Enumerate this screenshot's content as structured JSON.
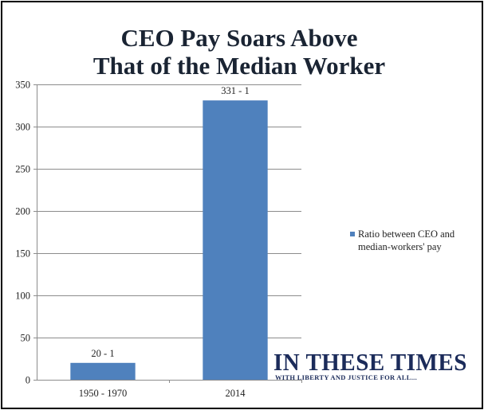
{
  "chart_data": {
    "type": "bar",
    "title_lines": [
      "CEO Pay Soars Above",
      "That of the Median Worker"
    ],
    "categories": [
      "1950 - 1970",
      "2014"
    ],
    "series": [
      {
        "name": "Ratio between CEO and median-workers' pay",
        "name_lines": [
          "Ratio between CEO and",
          "median-workers' pay"
        ],
        "values": [
          20,
          331
        ],
        "data_labels": [
          "20 - 1",
          "331 - 1"
        ],
        "color": "#4f81bd"
      }
    ],
    "ylim": [
      0,
      350
    ],
    "yticks": [
      0,
      50,
      100,
      150,
      200,
      250,
      300,
      350
    ],
    "grid": true,
    "legend_position": "right",
    "xlabel": "",
    "ylabel": ""
  },
  "watermark": {
    "main": "IN THESE TIMES",
    "sub": "WITH LIBERTY AND JUSTICE FOR ALL..."
  },
  "colors": {
    "bar": "#4f81bd",
    "grid": "#8c8c8c",
    "title": "#1a2433",
    "watermark": "#1b2b5a",
    "border": "#000000"
  }
}
